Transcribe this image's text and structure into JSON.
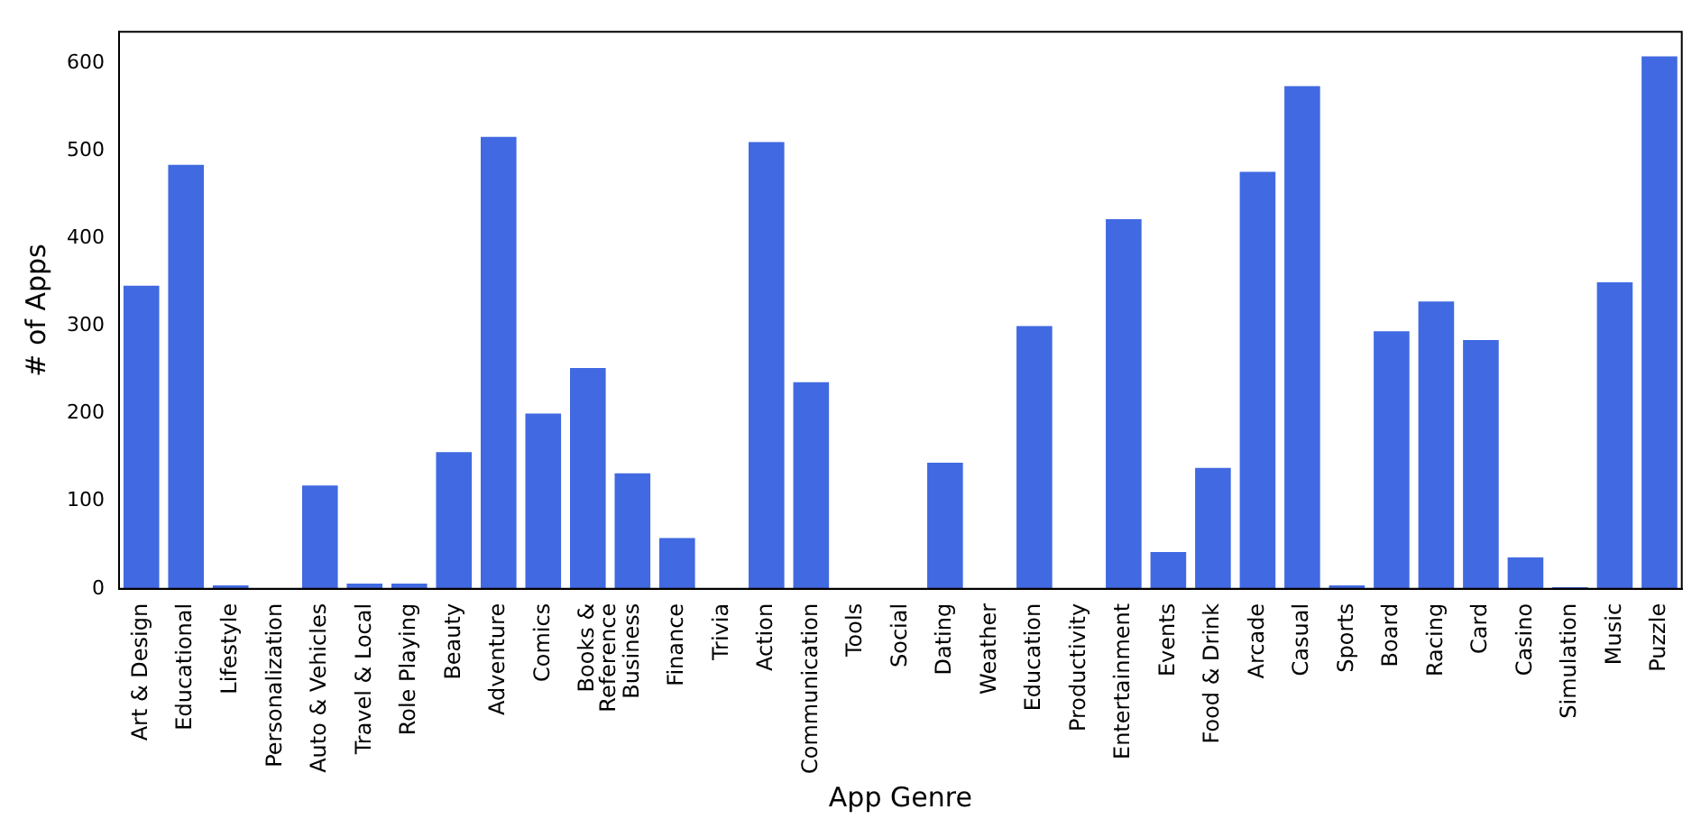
{
  "chart_data": {
    "type": "bar",
    "xlabel": "App Genre",
    "ylabel": "# of Apps",
    "categories": [
      "Art & Design",
      "Educational",
      "Lifestyle",
      "Personalization",
      "Auto & Vehicles",
      "Travel & Local",
      "Role Playing",
      "Beauty",
      "Adventure",
      "Comics",
      "Books & Reference",
      "Business",
      "Finance",
      "Trivia",
      "Action",
      "Communication",
      "Tools",
      "Social",
      "Dating",
      "Weather",
      "Education",
      "Productivity",
      "Entertainment",
      "Events",
      "Food & Drink",
      "Arcade",
      "Casual",
      "Sports",
      "Board",
      "Racing",
      "Card",
      "Casino",
      "Simulation",
      "Music",
      "Puzzle"
    ],
    "values": [
      346,
      484,
      4,
      0,
      118,
      6,
      6,
      156,
      516,
      200,
      252,
      132,
      58,
      0,
      510,
      236,
      0,
      0,
      144,
      0,
      300,
      0,
      422,
      42,
      138,
      476,
      574,
      4,
      294,
      328,
      284,
      36,
      2,
      350,
      608
    ],
    "color": "#4169e1",
    "ylim": [
      0,
      636
    ],
    "yticks": [
      0,
      100,
      200,
      300,
      400,
      500,
      600
    ],
    "grid": false,
    "legend": false
  }
}
